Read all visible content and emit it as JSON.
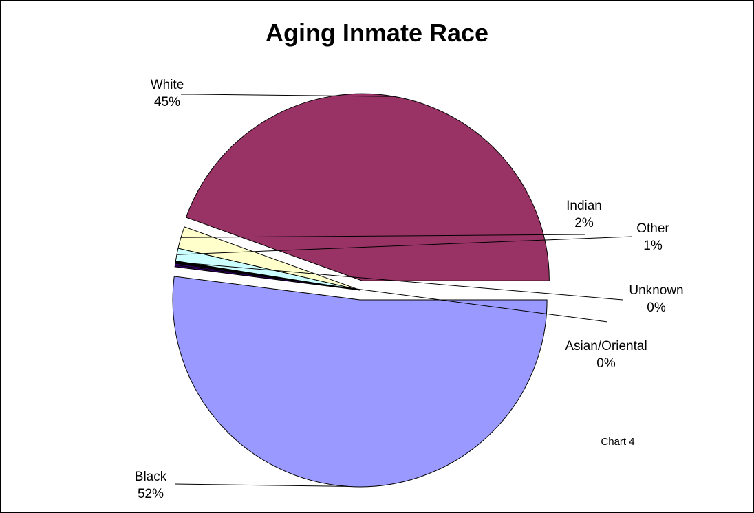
{
  "chart_data": {
    "type": "pie",
    "title": "Aging Inmate Race",
    "note": "Chart 4",
    "slices": [
      {
        "label": "Black",
        "percent_label": "52%",
        "value": 52,
        "color": "#9999FF",
        "exploded": true
      },
      {
        "label": "Asian/Oriental",
        "percent_label": "0%",
        "value": 0.3,
        "color": "#330066",
        "exploded": false
      },
      {
        "label": "Unknown",
        "percent_label": "0%",
        "value": 0.2,
        "color": "#000000",
        "exploded": false
      },
      {
        "label": "Other",
        "percent_label": "1%",
        "value": 1.1,
        "color": "#CCFFFF",
        "exploded": false
      },
      {
        "label": "Indian",
        "percent_label": "2%",
        "value": 1.9,
        "color": "#FFFFCC",
        "exploded": false
      },
      {
        "label": "White",
        "percent_label": "45%",
        "value": 44.5,
        "color": "#993366",
        "exploded": true
      }
    ]
  }
}
